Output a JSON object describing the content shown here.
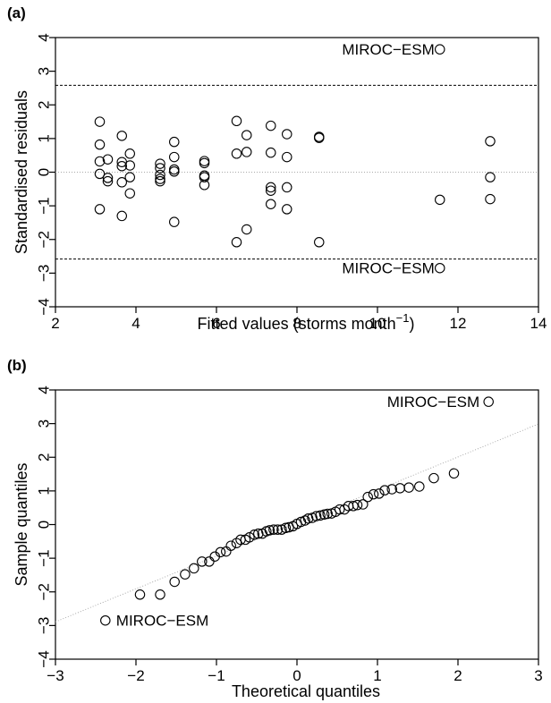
{
  "chart_data": [
    {
      "type": "scatter",
      "panel_label": "(a)",
      "title": "",
      "xlabel": "Fitted values (storms month",
      "xlabel_superscript": "−1",
      "xlabel_close": ")",
      "ylabel": "Standardised residuals",
      "xlim": [
        2,
        14
      ],
      "ylim": [
        -4,
        4
      ],
      "xticks": [
        2,
        4,
        6,
        8,
        10,
        12,
        14
      ],
      "yticks": [
        -4,
        -3,
        -2,
        -1,
        0,
        1,
        2,
        3,
        4
      ],
      "xtick_labels": [
        "2",
        "4",
        "6",
        "8",
        "10",
        "12",
        "14"
      ],
      "ytick_labels": [
        "−4",
        "−3",
        "−2",
        "−1",
        "0",
        "1",
        "2",
        "3",
        "4"
      ],
      "reference_lines": {
        "dashed": [
          2.58,
          -2.58
        ],
        "dotted": [
          0
        ]
      },
      "grid": false,
      "legend": "none",
      "annotations": [
        {
          "text": "MIROC−ESM",
          "x": 11.55,
          "y": 3.65
        },
        {
          "text": "MIROC−ESM",
          "x": 11.55,
          "y": -2.85
        }
      ],
      "x": [
        3.1,
        3.1,
        3.1,
        3.1,
        3.1,
        3.3,
        3.3,
        3.3,
        3.65,
        3.65,
        3.65,
        3.65,
        3.65,
        3.85,
        3.85,
        3.85,
        3.85,
        4.6,
        4.6,
        4.6,
        4.6,
        4.6,
        4.95,
        4.95,
        4.95,
        4.95,
        4.95,
        5.7,
        5.7,
        5.7,
        5.7,
        5.7,
        6.5,
        6.5,
        6.5,
        6.75,
        6.75,
        6.75,
        7.35,
        7.35,
        7.35,
        7.35,
        7.35,
        7.75,
        7.75,
        7.75,
        7.75,
        8.55,
        8.55,
        8.55,
        11.55,
        11.55,
        11.55,
        12.8,
        12.8,
        12.8
      ],
      "y": [
        0.82,
        0.32,
        -0.05,
        -1.1,
        1.5,
        0.38,
        -0.17,
        -0.27,
        1.08,
        0.3,
        0.18,
        -0.3,
        -1.3,
        0.55,
        0.2,
        -0.15,
        -0.63,
        0.25,
        0.12,
        -0.08,
        -0.2,
        -0.27,
        0.9,
        0.45,
        0.08,
        0.02,
        -1.48,
        0.33,
        0.27,
        -0.1,
        -0.38,
        -0.15,
        1.52,
        0.55,
        -2.08,
        1.1,
        0.6,
        -1.7,
        1.38,
        0.58,
        -0.45,
        -0.55,
        -0.95,
        1.13,
        0.45,
        -0.45,
        -1.1,
        1.05,
        1.02,
        -2.08,
        3.65,
        -0.82,
        -2.85,
        0.92,
        -0.15,
        -0.8
      ]
    },
    {
      "type": "scatter",
      "panel_label": "(b)",
      "title": "",
      "xlabel": "Theoretical quantiles",
      "ylabel": "Sample quantiles",
      "xlim": [
        -3,
        3
      ],
      "ylim": [
        -4,
        4
      ],
      "xticks": [
        -3,
        -2,
        -1,
        0,
        1,
        2,
        3
      ],
      "yticks": [
        -4,
        -3,
        -2,
        -1,
        0,
        1,
        2,
        3,
        4
      ],
      "xtick_labels": [
        "−3",
        "−2",
        "−1",
        "0",
        "1",
        "2",
        "3"
      ],
      "ytick_labels": [
        "−4",
        "−3",
        "−2",
        "−1",
        "0",
        "1",
        "2",
        "3",
        "4"
      ],
      "reference_line": {
        "style": "dotted",
        "intercept": 0.05,
        "slope": 0.98
      },
      "grid": false,
      "legend": "none",
      "annotations": [
        {
          "text": "MIROC−ESM",
          "x": 2.38,
          "y": 3.65
        },
        {
          "text": "MIROC−ESM",
          "x": -2.38,
          "y": -2.85
        }
      ],
      "x": [
        -2.38,
        -1.95,
        -1.7,
        -1.52,
        -1.39,
        -1.28,
        -1.18,
        -1.09,
        -1.02,
        -0.95,
        -0.88,
        -0.82,
        -0.75,
        -0.7,
        -0.64,
        -0.59,
        -0.53,
        -0.48,
        -0.43,
        -0.38,
        -0.34,
        -0.29,
        -0.24,
        -0.19,
        -0.14,
        -0.1,
        -0.05,
        0.0,
        0.05,
        0.1,
        0.14,
        0.19,
        0.24,
        0.29,
        0.34,
        0.38,
        0.43,
        0.48,
        0.53,
        0.59,
        0.64,
        0.7,
        0.75,
        0.82,
        0.88,
        0.95,
        1.02,
        1.09,
        1.18,
        1.28,
        1.39,
        1.52,
        1.7,
        1.95,
        2.38
      ],
      "y": [
        -2.85,
        -2.08,
        -2.08,
        -1.7,
        -1.48,
        -1.3,
        -1.1,
        -1.1,
        -0.95,
        -0.82,
        -0.8,
        -0.63,
        -0.55,
        -0.45,
        -0.45,
        -0.38,
        -0.3,
        -0.27,
        -0.27,
        -0.2,
        -0.17,
        -0.15,
        -0.15,
        -0.15,
        -0.1,
        -0.08,
        -0.05,
        0.02,
        0.08,
        0.12,
        0.18,
        0.2,
        0.25,
        0.27,
        0.3,
        0.32,
        0.33,
        0.38,
        0.45,
        0.45,
        0.55,
        0.55,
        0.58,
        0.6,
        0.82,
        0.9,
        0.92,
        1.02,
        1.05,
        1.08,
        1.1,
        1.13,
        1.38,
        1.52,
        3.65
      ]
    }
  ]
}
